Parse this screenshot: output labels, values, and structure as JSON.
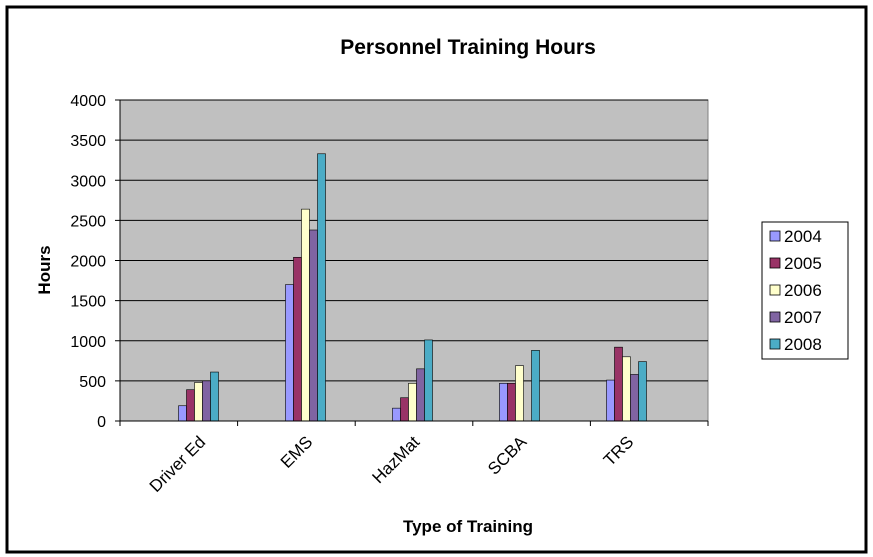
{
  "chart_data": {
    "type": "bar",
    "title": "Personnel Training Hours",
    "x_label": "Type of Training",
    "y_label": "Hours",
    "categories": [
      "Driver Ed",
      "EMS",
      "HazMat",
      "SCBA",
      "TRS"
    ],
    "series": [
      {
        "name": "2004",
        "color": "#9999ff",
        "values": [
          190,
          1700,
          160,
          470,
          510
        ]
      },
      {
        "name": "2005",
        "color": "#993366",
        "values": [
          390,
          2040,
          290,
          470,
          920
        ]
      },
      {
        "name": "2006",
        "color": "#ffffcc",
        "values": [
          480,
          2640,
          470,
          690,
          800
        ]
      },
      {
        "name": "2007",
        "color": "#8064a2",
        "values": [
          500,
          2380,
          650,
          0,
          580
        ]
      },
      {
        "name": "2008",
        "color": "#4bacc6",
        "values": [
          610,
          3330,
          1010,
          880,
          740
        ]
      }
    ],
    "ylim": [
      0,
      4000
    ],
    "yticks": [
      0,
      500,
      1000,
      1500,
      2000,
      2500,
      3000,
      3500,
      4000
    ],
    "grid": true,
    "legend": "right"
  }
}
